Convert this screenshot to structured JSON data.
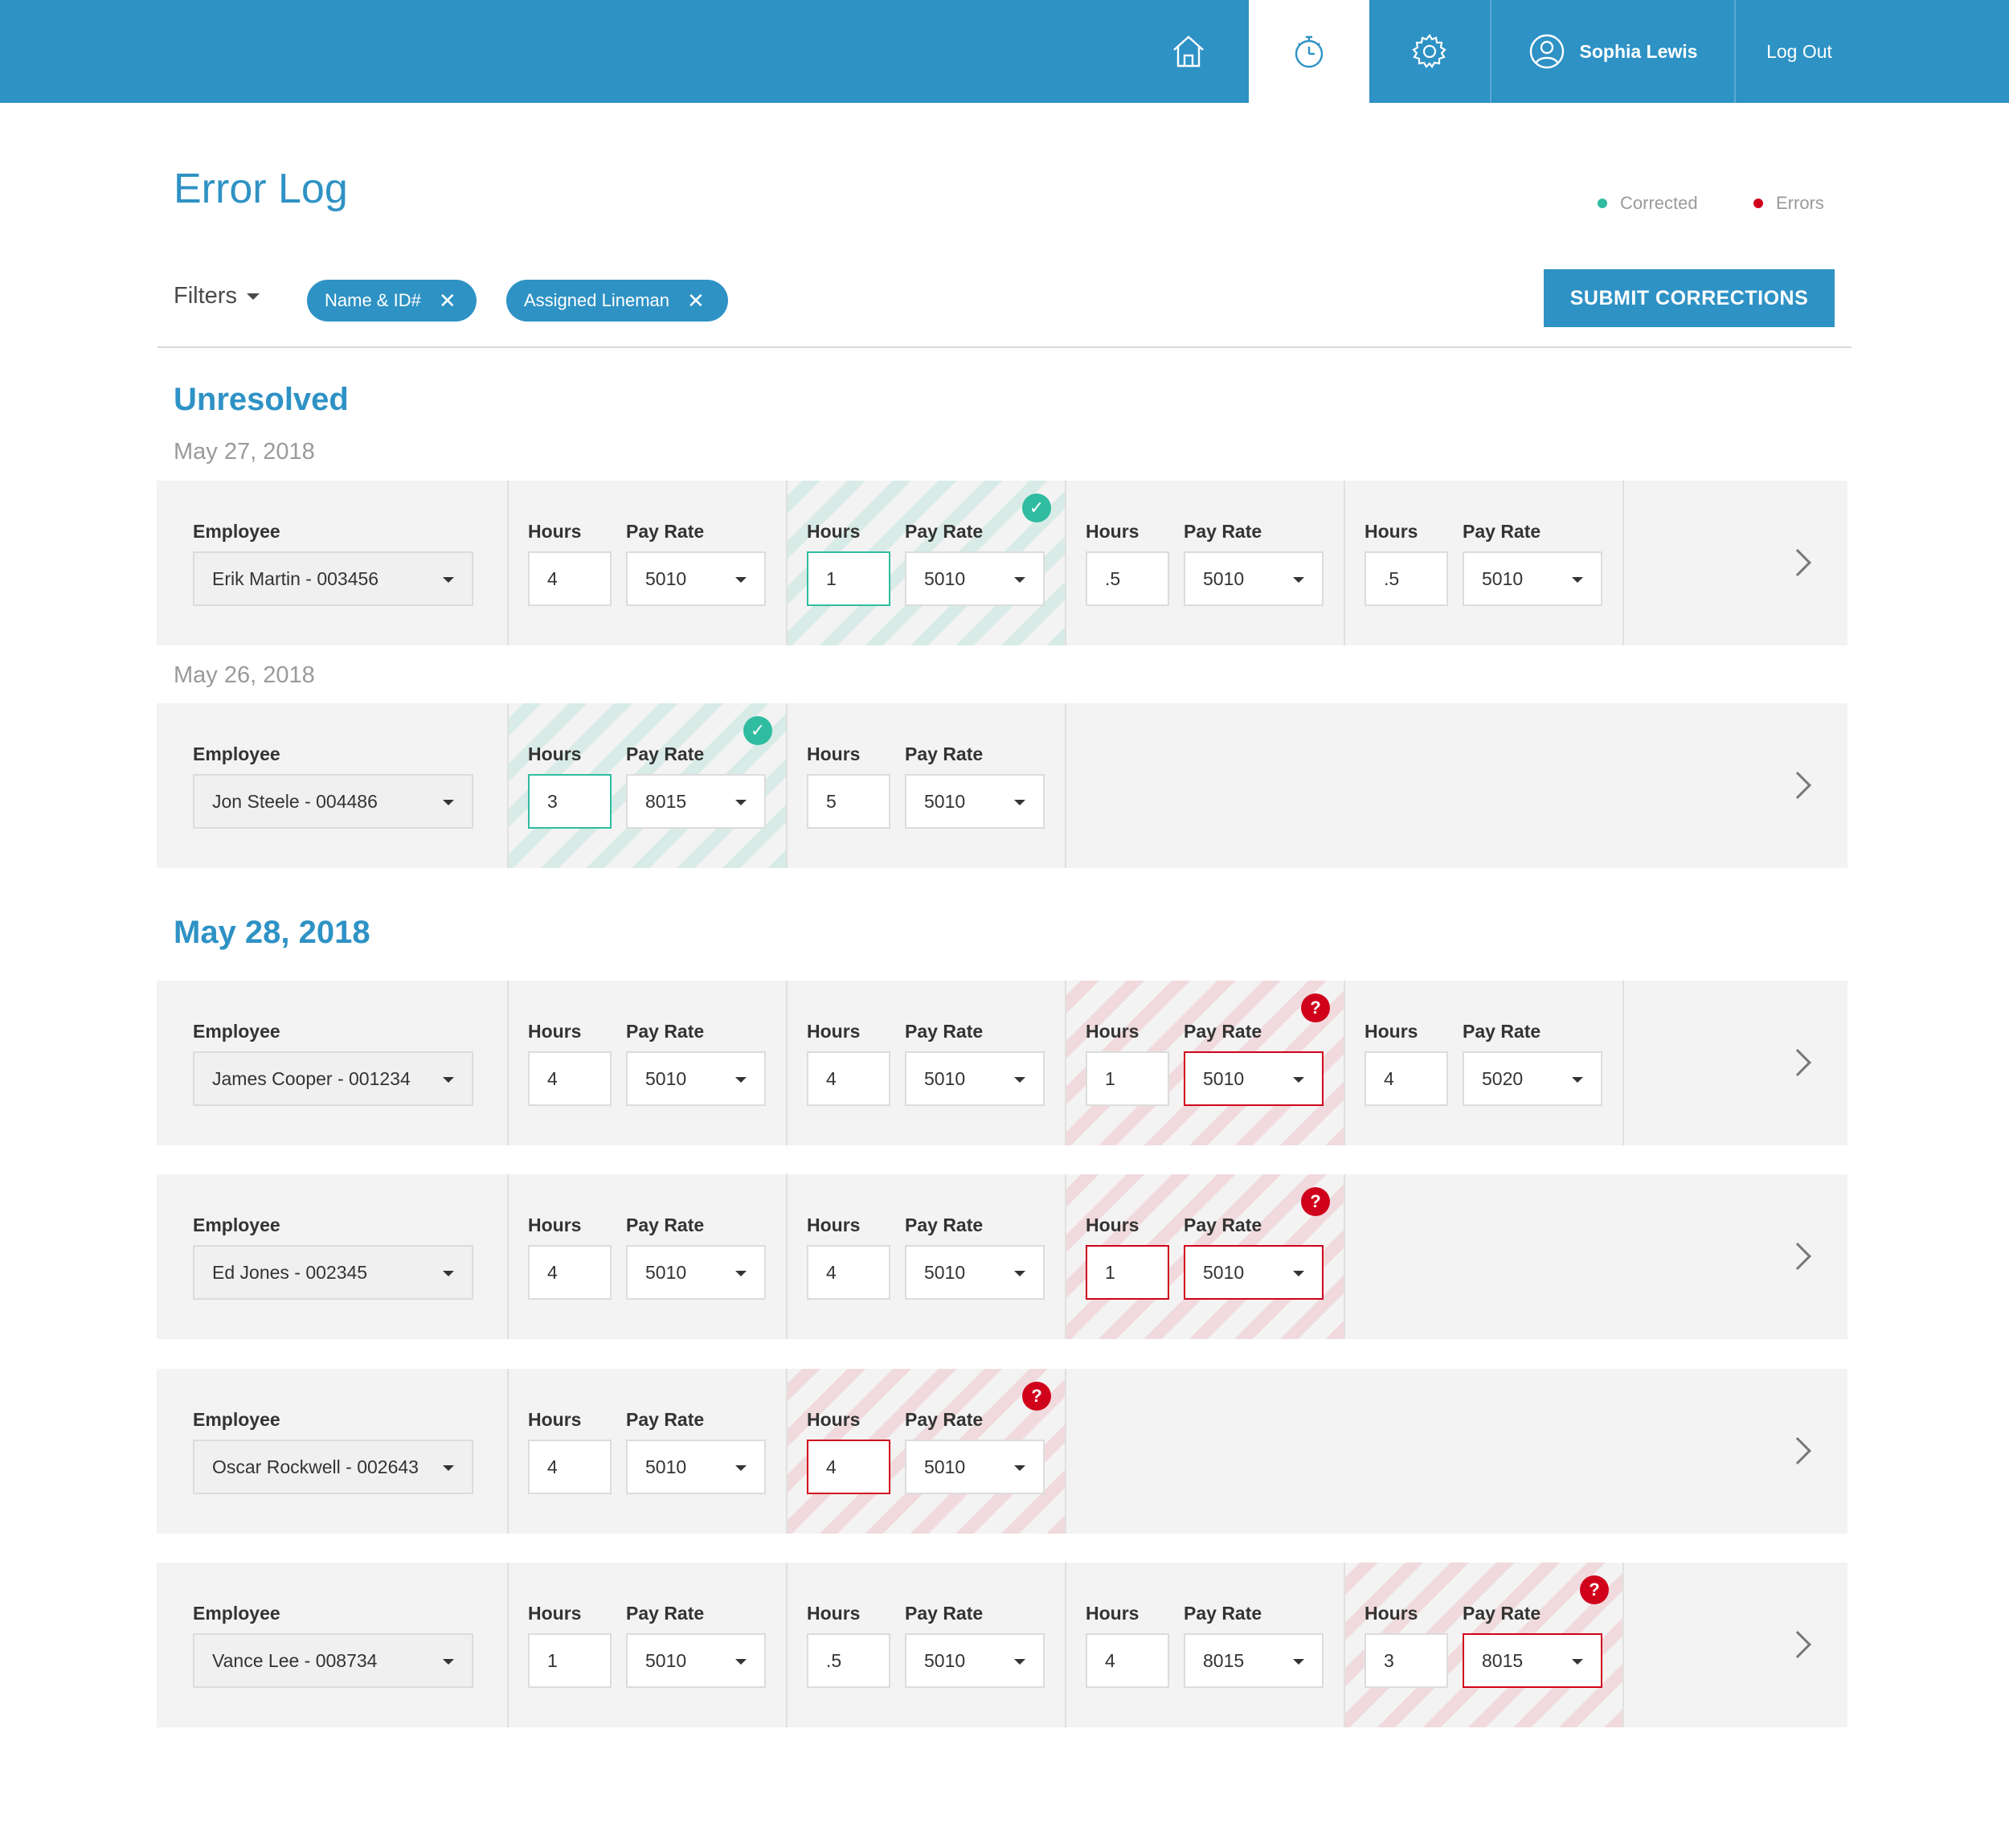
{
  "nav": {
    "home_icon": "home-icon",
    "timer_icon": "stopwatch-icon",
    "settings_icon": "gear-icon",
    "user_icon": "user-circle-icon",
    "user_name": "Sophia Lewis",
    "logout_label": "Log Out"
  },
  "page": {
    "title": "Error Log",
    "legend_corrected": "Corrected",
    "legend_errors": "Errors",
    "filters_label": "Filters",
    "chip_1": "Name & ID#",
    "chip_2": "Assigned Lineman",
    "submit_label": "SUBMIT CORRECTIONS"
  },
  "colors": {
    "brand": "#2e92c5",
    "corrected": "#2fbca0",
    "error": "#d0021b"
  },
  "labels": {
    "employee": "Employee",
    "hours": "Hours",
    "pay_rate": "Pay Rate"
  },
  "sections": {
    "unresolved_title": "Unresolved",
    "unresolved_date_1": "May 27, 2018",
    "unresolved_date_2": "May 26, 2018",
    "second_title": "May 28, 2018"
  },
  "rows": [
    {
      "employee": "Erik Martin - 003456",
      "entries": [
        {
          "hours": "4",
          "rate": "5010",
          "state": "normal"
        },
        {
          "hours": "1",
          "rate": "5010",
          "state": "corrected",
          "hours_flag": "corrected"
        },
        {
          "hours": ".5",
          "rate": "5010",
          "state": "normal"
        },
        {
          "hours": ".5",
          "rate": "5010",
          "state": "normal"
        }
      ]
    },
    {
      "employee": "Jon Steele - 004486",
      "entries": [
        {
          "hours": "3",
          "rate": "8015",
          "state": "corrected",
          "hours_flag": "corrected"
        },
        {
          "hours": "5",
          "rate": "5010",
          "state": "normal"
        }
      ]
    },
    {
      "employee": "James Cooper - 001234",
      "entries": [
        {
          "hours": "4",
          "rate": "5010",
          "state": "normal"
        },
        {
          "hours": "4",
          "rate": "5010",
          "state": "normal"
        },
        {
          "hours": "1",
          "rate": "5010",
          "state": "error",
          "rate_flag": "error"
        },
        {
          "hours": "4",
          "rate": "5020",
          "state": "normal"
        }
      ]
    },
    {
      "employee": "Ed Jones - 002345",
      "entries": [
        {
          "hours": "4",
          "rate": "5010",
          "state": "normal"
        },
        {
          "hours": "4",
          "rate": "5010",
          "state": "normal"
        },
        {
          "hours": "1",
          "rate": "5010",
          "state": "error",
          "hours_flag": "error",
          "rate_flag": "error"
        }
      ]
    },
    {
      "employee": "Oscar Rockwell - 002643",
      "entries": [
        {
          "hours": "4",
          "rate": "5010",
          "state": "normal"
        },
        {
          "hours": "4",
          "rate": "5010",
          "state": "error",
          "hours_flag": "error"
        }
      ]
    },
    {
      "employee": "Vance Lee - 008734",
      "entries": [
        {
          "hours": "1",
          "rate": "5010",
          "state": "normal"
        },
        {
          "hours": ".5",
          "rate": "5010",
          "state": "normal"
        },
        {
          "hours": "4",
          "rate": "8015",
          "state": "normal"
        },
        {
          "hours": "3",
          "rate": "8015",
          "state": "error",
          "rate_flag": "error"
        }
      ]
    }
  ]
}
